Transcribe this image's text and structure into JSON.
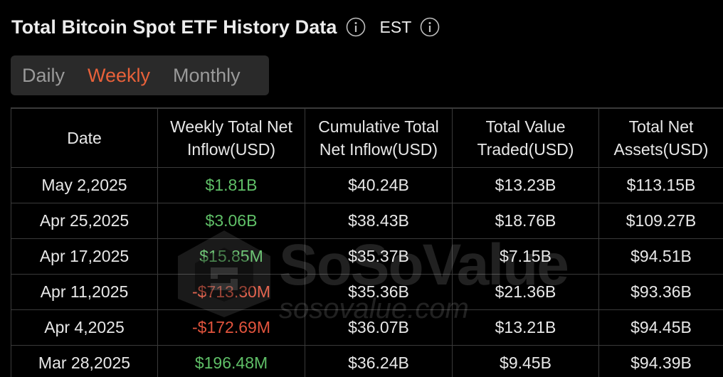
{
  "header": {
    "title": "Total Bitcoin Spot ETF History Data",
    "timezone": "EST"
  },
  "tabs": [
    {
      "label": "Daily",
      "active": false
    },
    {
      "label": "Weekly",
      "active": true
    },
    {
      "label": "Monthly",
      "active": false
    }
  ],
  "table": {
    "columns": [
      "Date",
      "Weekly Total Net Inflow(USD)",
      "Cumulative Total Net Inflow(USD)",
      "Total Value Traded(USD)",
      "Total Net Assets(USD)"
    ],
    "rows": [
      {
        "date": "May 2,2025",
        "inflow": "$1.81B",
        "inflow_sign": "pos",
        "cumulative": "$40.24B",
        "traded": "$13.23B",
        "assets": "$113.15B"
      },
      {
        "date": "Apr 25,2025",
        "inflow": "$3.06B",
        "inflow_sign": "pos",
        "cumulative": "$38.43B",
        "traded": "$18.76B",
        "assets": "$109.27B"
      },
      {
        "date": "Apr 17,2025",
        "inflow": "$15.85M",
        "inflow_sign": "pos",
        "cumulative": "$35.37B",
        "traded": "$7.15B",
        "assets": "$94.51B"
      },
      {
        "date": "Apr 11,2025",
        "inflow": "-$713.30M",
        "inflow_sign": "neg",
        "cumulative": "$35.36B",
        "traded": "$21.36B",
        "assets": "$93.36B"
      },
      {
        "date": "Apr 4,2025",
        "inflow": "-$172.69M",
        "inflow_sign": "neg",
        "cumulative": "$36.07B",
        "traded": "$13.21B",
        "assets": "$94.45B"
      },
      {
        "date": "Mar 28,2025",
        "inflow": "$196.48M",
        "inflow_sign": "pos",
        "cumulative": "$36.24B",
        "traded": "$9.45B",
        "assets": "$94.39B"
      }
    ]
  },
  "watermark": {
    "brand": "SoSoValue",
    "url": "sosovalue.com"
  },
  "colors": {
    "accent": "#e8613a",
    "positive": "#5fbf67",
    "negative": "#e2543d",
    "background": "#000000",
    "tabs_bg": "#2a2a2a",
    "border": "#3a3a3a"
  },
  "icons": [
    "info-icon",
    "timezone-info-icon",
    "sosovalue-logo-icon"
  ]
}
